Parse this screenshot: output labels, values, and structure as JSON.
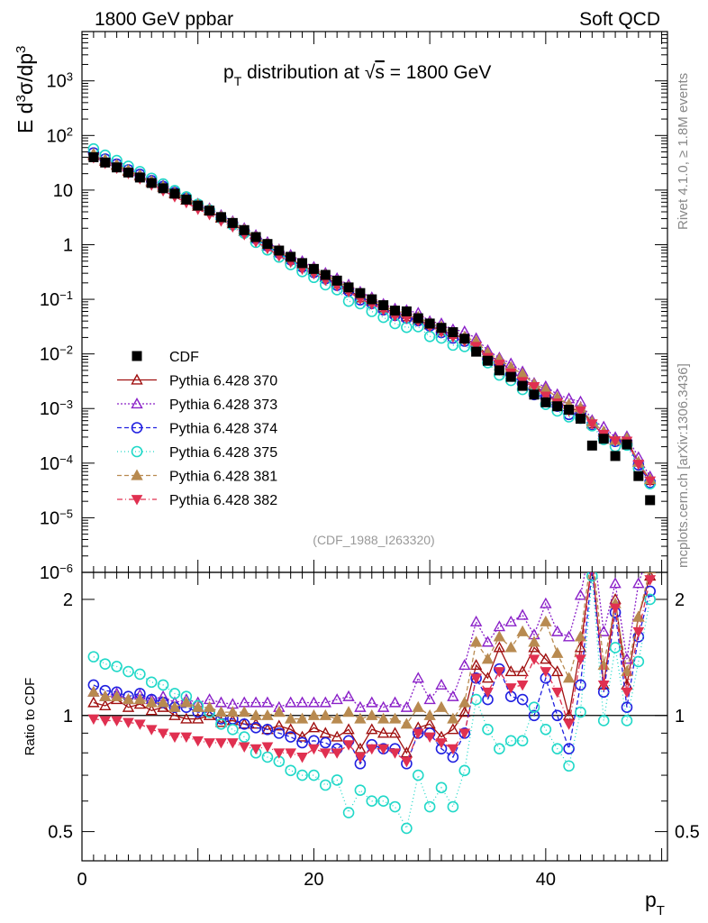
{
  "header": {
    "left": "1800 GeV ppbar",
    "right": "Soft QCD"
  },
  "side_labels": {
    "rivet": "Rivet 4.1.0, ≥ 1.8M events",
    "mcplots": "mcplots.cern.ch [arXiv:1306.3436]"
  },
  "chart_data": {
    "type": "scatter",
    "title": "p_T distribution at √s = 1800 GeV",
    "title_parts": {
      "p": "p",
      "sub": "T",
      "mid": " distribution at ",
      "sqrt": "√",
      "s": "s",
      "rest": " = 1800 GeV"
    },
    "analysis_label": "(CDF_1988_I263320)",
    "xlabel": {
      "main": "p",
      "sub": "T"
    },
    "ylabel": {
      "main": "E  d",
      "sup1": "3",
      "mid": "σ/dp",
      "sup2": "3"
    },
    "ratio_ylabel": "Ratio to CDF",
    "xlim": [
      0,
      50.5
    ],
    "ylim_main": [
      1e-06,
      8000
    ],
    "ylim_ratio": [
      0.42,
      2.35
    ],
    "x_ticks": [
      {
        "v": 0,
        "label": "0"
      },
      {
        "v": 20,
        "label": "20"
      },
      {
        "v": 40,
        "label": "40"
      }
    ],
    "y_ticks_main": [
      {
        "v": 1e-06,
        "base": "10",
        "exp": "−6"
      },
      {
        "v": 1e-05,
        "base": "10",
        "exp": "−5"
      },
      {
        "v": 0.0001,
        "base": "10",
        "exp": "−4"
      },
      {
        "v": 0.001,
        "base": "10",
        "exp": "−3"
      },
      {
        "v": 0.01,
        "base": "10",
        "exp": "−2"
      },
      {
        "v": 0.1,
        "base": "10",
        "exp": "−1"
      },
      {
        "v": 1,
        "base": "1",
        "exp": ""
      },
      {
        "v": 10,
        "base": "10",
        "exp": ""
      },
      {
        "v": 100,
        "base": "10",
        "exp": "2"
      },
      {
        "v": 1000,
        "base": "10",
        "exp": "3"
      }
    ],
    "y_ticks_ratio": [
      {
        "v": 0.5,
        "label": "0.5"
      },
      {
        "v": 1,
        "label": "1"
      },
      {
        "v": 2,
        "label": "2"
      }
    ],
    "x": [
      1,
      2,
      3,
      4,
      5,
      6,
      7,
      8,
      9,
      10,
      11,
      12,
      13,
      14,
      15,
      16,
      17,
      18,
      19,
      20,
      21,
      22,
      23,
      24,
      25,
      26,
      27,
      28,
      29,
      30,
      31,
      32,
      33,
      34,
      35,
      36,
      37,
      38,
      39,
      40,
      41,
      42,
      43,
      44,
      45,
      46,
      47,
      48,
      49
    ],
    "data": {
      "name": "CDF",
      "values": [
        40,
        32,
        26,
        21,
        17,
        13.5,
        10.8,
        8.6,
        6.7,
        5.2,
        4.2,
        3.2,
        2.5,
        1.85,
        1.38,
        1.03,
        0.78,
        0.6,
        0.46,
        0.36,
        0.28,
        0.22,
        0.165,
        0.13,
        0.1,
        0.078,
        0.062,
        0.06,
        0.045,
        0.036,
        0.03,
        0.025,
        0.019,
        0.011,
        0.0075,
        0.005,
        0.0038,
        0.0026,
        0.0018,
        0.0013,
        0.0011,
        0.00095,
        0.00065,
        0.00021,
        0.00028,
        0.000135,
        0.00022,
        5.8e-05,
        2.1e-05
      ]
    },
    "series": [
      {
        "name": "Pythia 6.428 370",
        "color": "#a01010",
        "dash": "",
        "marker": "triangle-up-open",
        "ratio": [
          1.08,
          1.06,
          1.1,
          1.05,
          1.07,
          1.03,
          1.05,
          1.0,
          0.98,
          0.98,
          1.0,
          0.96,
          0.97,
          0.95,
          0.95,
          0.92,
          0.94,
          0.92,
          0.88,
          0.93,
          0.9,
          0.88,
          0.92,
          0.82,
          0.92,
          0.9,
          0.9,
          0.8,
          0.93,
          0.95,
          0.88,
          0.92,
          1.02,
          1.35,
          1.25,
          1.5,
          1.3,
          1.3,
          1.5,
          1.4,
          1.3,
          1.0,
          1.5,
          2.5,
          1.2,
          2.0,
          1.2,
          1.8,
          2.3
        ]
      },
      {
        "name": "Pythia 6.428 373",
        "color": "#8a20c8",
        "dash": "2,2",
        "marker": "triangle-up-open",
        "ratio": [
          1.15,
          1.12,
          1.14,
          1.1,
          1.13,
          1.1,
          1.12,
          1.08,
          1.1,
          1.08,
          1.1,
          1.08,
          1.07,
          1.08,
          1.08,
          1.08,
          1.05,
          1.08,
          1.08,
          1.08,
          1.08,
          1.1,
          1.12,
          1.05,
          1.08,
          1.05,
          1.08,
          1.05,
          1.25,
          1.1,
          1.2,
          1.12,
          1.35,
          1.75,
          1.55,
          1.7,
          1.75,
          1.82,
          1.62,
          1.95,
          1.65,
          1.6,
          2.05,
          2.9,
          1.65,
          2.2,
          1.4,
          2.2,
          2.7
        ]
      },
      {
        "name": "Pythia 6.428 374",
        "color": "#2020e0",
        "dash": "5,3",
        "marker": "circle-open",
        "ratio": [
          1.2,
          1.16,
          1.15,
          1.12,
          1.14,
          1.1,
          1.08,
          1.05,
          1.05,
          1.02,
          1.02,
          0.98,
          0.98,
          0.95,
          0.93,
          0.92,
          0.9,
          0.88,
          0.85,
          0.86,
          0.85,
          0.82,
          0.86,
          0.75,
          0.84,
          0.82,
          0.82,
          0.75,
          0.9,
          0.9,
          0.82,
          0.78,
          0.9,
          1.25,
          1.1,
          1.32,
          1.12,
          1.1,
          1.0,
          1.25,
          1.0,
          0.82,
          1.2,
          2.4,
          1.15,
          1.85,
          1.05,
          1.6,
          2.1
        ]
      },
      {
        "name": "Pythia 6.428 375",
        "color": "#20d8c8",
        "dash": "1,3",
        "marker": "circle-open",
        "ratio": [
          1.42,
          1.36,
          1.34,
          1.3,
          1.28,
          1.22,
          1.2,
          1.14,
          1.12,
          1.06,
          1.02,
          0.95,
          0.92,
          0.88,
          0.8,
          0.78,
          0.76,
          0.72,
          0.7,
          0.7,
          0.66,
          0.68,
          0.56,
          0.64,
          0.6,
          0.6,
          0.58,
          0.51,
          0.7,
          0.58,
          0.65,
          0.58,
          0.72,
          1.1,
          0.92,
          0.82,
          0.86,
          0.86,
          1.05,
          0.92,
          0.82,
          0.74,
          1.02,
          2.3,
          0.97,
          1.5,
          0.97,
          1.38,
          2.0
        ]
      },
      {
        "name": "Pythia 6.428 381",
        "color": "#b88a50",
        "dash": "5,3",
        "marker": "triangle-up-filled",
        "ratio": [
          1.15,
          1.12,
          1.12,
          1.1,
          1.1,
          1.08,
          1.08,
          1.05,
          1.08,
          1.05,
          1.05,
          1.02,
          1.02,
          1.02,
          1.0,
          1.0,
          1.02,
          0.98,
          0.98,
          1.0,
          1.0,
          0.98,
          1.02,
          0.98,
          1.0,
          0.98,
          0.98,
          0.95,
          1.05,
          1.0,
          1.05,
          0.98,
          1.08,
          1.55,
          1.4,
          1.6,
          1.5,
          1.65,
          1.55,
          1.75,
          1.45,
          1.25,
          1.6,
          2.7,
          1.35,
          1.95,
          1.3,
          1.8,
          2.4
        ]
      },
      {
        "name": "Pythia 6.428 382",
        "color": "#e03050",
        "dash": "6,3,1,3",
        "marker": "triangle-down-filled",
        "ratio": [
          0.98,
          0.97,
          0.97,
          0.96,
          0.95,
          0.92,
          0.9,
          0.88,
          0.88,
          0.86,
          0.85,
          0.85,
          0.85,
          0.83,
          0.82,
          0.83,
          0.8,
          0.8,
          0.78,
          0.82,
          0.8,
          0.8,
          0.84,
          0.78,
          0.82,
          0.82,
          0.8,
          0.76,
          0.9,
          0.88,
          0.85,
          0.82,
          0.9,
          1.25,
          1.15,
          1.3,
          1.18,
          1.2,
          1.4,
          1.3,
          1.15,
          0.95,
          1.4,
          2.5,
          1.2,
          1.9,
          1.15,
          1.65,
          2.25
        ]
      }
    ]
  }
}
